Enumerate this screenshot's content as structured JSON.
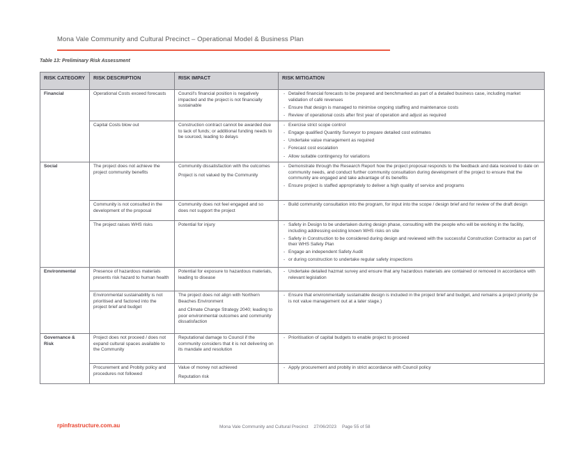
{
  "page": {
    "header_title": "Mona Vale Community and Cultural Precinct – Operational Model & Business Plan",
    "caption": "Table 13: Preliminary Risk Assessment",
    "footer_link": "rpinfrastructure.com.au",
    "footer_doc": "Mona Vale Community and Cultural Precinct",
    "footer_date": "27/06/2023",
    "footer_page": "Page 55 of 58",
    "accent_color": "#ec573f",
    "header_bg_color": "#d2d2d6"
  },
  "table": {
    "headers": [
      "RISK CATEGORY",
      "RISK DESCRIPTION",
      "RISK IMPACT",
      "RISK MITIGATION"
    ],
    "groups": [
      {
        "category": "Financial",
        "rows": [
          {
            "description": "Operational Costs exceed forecasts",
            "impact": [
              "Council's financial position is negatively impacted and the project is not financially sustainable"
            ],
            "mitigation": [
              "Detailed financial forecasts to be prepared and benchmarked as part of a detailed business case, including market validation of café revenues",
              "Ensure that design is managed to minimise ongoing staffing and maintenance costs",
              "Review of operational costs after first year of operation and adjust as required"
            ]
          },
          {
            "description": "Capital Costs blow out",
            "impact": [
              "Construction contract cannot be awarded due to lack of funds; or additional funding needs to be sourced, leading to delays"
            ],
            "mitigation": [
              "Exercise strict scope control",
              "Engage qualified Quantity Surveyor to prepare detailed cost estimates",
              "Undertake value management as required",
              "Forecast cost escalation",
              "Allow suitable contingency for variations"
            ]
          }
        ]
      },
      {
        "category": "Social",
        "rows": [
          {
            "description": "The project does not achieve the project community benefits",
            "impact": [
              "Community dissatisfaction with the outcomes",
              "Project is not valued by the Community"
            ],
            "mitigation": [
              "Demonstrate through the Research Report how the project proposal responds to the feedback and data received to date on community needs, and conduct further community consultation during development of the project to ensure that the community are engaged and take advantage of its benefits",
              "Ensure project is staffed appropriately to deliver a high quality of service and programs"
            ]
          },
          {
            "description": "Community is not consulted in the development of the proposal",
            "impact": [
              "Community does not feel engaged and so does not support the project"
            ],
            "mitigation": [
              "Build community consultation into the program, for input into the scope / design brief and for review of the draft design"
            ]
          },
          {
            "description": "The project raises WHS risks",
            "impact": [
              "Potential for injury"
            ],
            "mitigation": [
              "Safety in Design to be undertaken during design phase, consulting with the people who will be working in the facility, including addressing existing known WHS risks on site",
              "Safety in Construction to be considered during design and reviewed with the successful Construction Contractor as part of their WHS Safety Plan",
              "Engage an independent Safety Audit",
              "or during construction to undertake regular safety inspections"
            ]
          }
        ]
      },
      {
        "category": "Environmental",
        "rows": [
          {
            "description": "Presence of hazardous materials presents risk hazard to human health",
            "impact": [
              "Potential for exposure to hazardous materials, leading to disease"
            ],
            "mitigation": [
              "Undertake detailed hazmat survey and ensure that any hazardous materials are contained or removed in accordance with relevant legislation"
            ]
          },
          {
            "description": "Environmental sustainability is not prioritised and factored into the project brief and budget",
            "impact": [
              "The project does not align with Northern Beaches Environment",
              "and Climate Change Strategy 2040; leading to poor environmental outcomes and community dissatisfaction"
            ],
            "mitigation": [
              "Ensure that environmentally sustainable design is included in the project brief and budget, and remains a project priority (ie is not value management out at a later stage.)"
            ]
          }
        ]
      },
      {
        "category": "Governance & Risk",
        "rows": [
          {
            "description": "Project does not proceed / does not expand cultural spaces available to the Community",
            "impact": [
              "Reputational damage to Council if the community considers that it is not delivering on its mandate and resolution"
            ],
            "mitigation": [
              "Prioritisation of capital budgets to enable project to proceed"
            ]
          },
          {
            "description": "Procurement and Probity policy and procedures not followed",
            "impact": [
              "Value of money not achieved",
              "Reputation risk"
            ],
            "mitigation": [
              "Apply procurement and probity in strict accordance with Council policy"
            ]
          }
        ]
      }
    ]
  }
}
